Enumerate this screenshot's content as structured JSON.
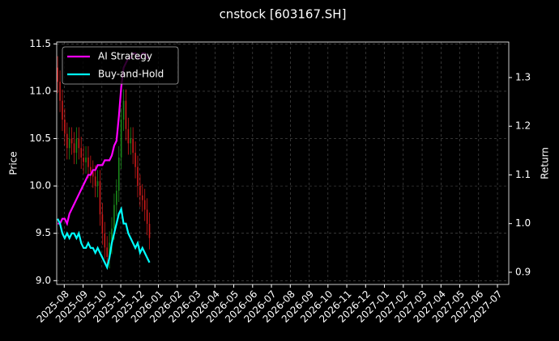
{
  "chart_data": {
    "type": "candlestick",
    "title": "cnstock [603167.SH]",
    "ylabel": "Price",
    "y2label": "Return",
    "x": [
      -0.35,
      -0.225,
      -0.1,
      0.025,
      0.15,
      0.275,
      0.4,
      0.525,
      0.65,
      0.775,
      0.9,
      1.025,
      1.15,
      1.275,
      1.4,
      1.525,
      1.65,
      1.775,
      1.9,
      2.025,
      2.15,
      2.275,
      2.4,
      2.525,
      2.65,
      2.775,
      2.9,
      3.025,
      3.15,
      3.275,
      3.4,
      3.525,
      3.65,
      3.775,
      3.9,
      4.025,
      4.15,
      4.275,
      4.4,
      4.525
    ],
    "open": [
      11.25,
      11.1,
      10.9,
      10.7,
      10.55,
      10.4,
      10.5,
      10.45,
      10.35,
      10.5,
      10.4,
      10.3,
      10.25,
      10.3,
      10.2,
      10.15,
      10.1,
      10.0,
      10.05,
      9.7,
      9.5,
      9.35,
      9.25,
      9.4,
      9.55,
      9.8,
      9.95,
      10.3,
      10.7,
      10.9,
      10.6,
      10.45,
      10.5,
      10.35,
      10.2,
      10.0,
      9.9,
      9.85,
      9.75,
      9.6
    ],
    "high": [
      11.37,
      11.22,
      11.02,
      10.82,
      10.67,
      10.62,
      10.62,
      10.57,
      10.62,
      10.62,
      10.52,
      10.42,
      10.42,
      10.42,
      10.32,
      10.27,
      10.22,
      10.17,
      10.17,
      9.82,
      9.62,
      9.47,
      9.52,
      9.67,
      9.92,
      10.07,
      10.42,
      10.82,
      11.02,
      11.02,
      10.72,
      10.62,
      10.62,
      10.47,
      10.32,
      10.12,
      10.02,
      9.97,
      9.87,
      9.72
    ],
    "low": [
      10.98,
      10.78,
      10.58,
      10.43,
      10.28,
      10.28,
      10.33,
      10.23,
      10.23,
      10.28,
      10.18,
      10.13,
      10.13,
      10.08,
      10.03,
      9.98,
      9.88,
      9.88,
      9.58,
      9.38,
      9.23,
      9.13,
      9.13,
      9.28,
      9.43,
      9.68,
      9.83,
      10.18,
      10.58,
      10.48,
      10.33,
      10.33,
      10.23,
      10.08,
      9.88,
      9.78,
      9.73,
      9.63,
      9.48,
      9.33
    ],
    "close": [
      11.1,
      10.9,
      10.7,
      10.55,
      10.4,
      10.5,
      10.45,
      10.35,
      10.5,
      10.4,
      10.3,
      10.25,
      10.3,
      10.2,
      10.15,
      10.1,
      10.0,
      10.05,
      9.7,
      9.5,
      9.35,
      9.25,
      9.4,
      9.55,
      9.8,
      9.95,
      10.3,
      10.7,
      10.9,
      10.6,
      10.45,
      10.5,
      10.35,
      10.2,
      10.0,
      9.9,
      9.85,
      9.75,
      9.6,
      9.45
    ],
    "up_color": "#1a8a1a",
    "down_color": "#cc1a1a",
    "series": [
      {
        "name": "AI Strategy",
        "color": "#ff00ff",
        "axis": "y2",
        "values": [
          1.0,
          1.0,
          1.01,
          1.01,
          1.0,
          1.02,
          1.03,
          1.04,
          1.05,
          1.06,
          1.07,
          1.08,
          1.09,
          1.1,
          1.1,
          1.11,
          1.11,
          1.12,
          1.12,
          1.12,
          1.13,
          1.13,
          1.13,
          1.14,
          1.16,
          1.17,
          1.22,
          1.28,
          1.32,
          1.33,
          1.34,
          1.34,
          1.35,
          1.35,
          1.34,
          1.34,
          1.35,
          1.35,
          1.34,
          1.34
        ]
      },
      {
        "name": "Buy-and-Hold",
        "color": "#00ffff",
        "axis": "y2",
        "values": [
          1.01,
          1.0,
          0.98,
          0.97,
          0.98,
          0.97,
          0.98,
          0.98,
          0.97,
          0.98,
          0.96,
          0.95,
          0.95,
          0.96,
          0.95,
          0.95,
          0.94,
          0.95,
          0.94,
          0.93,
          0.92,
          0.91,
          0.93,
          0.96,
          0.98,
          1.0,
          1.02,
          1.03,
          1.0,
          1.0,
          0.98,
          0.97,
          0.96,
          0.95,
          0.96,
          0.94,
          0.95,
          0.94,
          0.93,
          0.92
        ]
      }
    ],
    "xlim": [
      -0.4,
      23.6
    ],
    "xticks": [
      {
        "value": 0,
        "label": "2025-08"
      },
      {
        "value": 1,
        "label": "2025-09"
      },
      {
        "value": 2,
        "label": "2025-10"
      },
      {
        "value": 3,
        "label": "2025-11"
      },
      {
        "value": 4,
        "label": "2025-12"
      },
      {
        "value": 5,
        "label": "2026-01"
      },
      {
        "value": 6,
        "label": "2026-02"
      },
      {
        "value": 7,
        "label": "2026-03"
      },
      {
        "value": 8,
        "label": "2026-04"
      },
      {
        "value": 9,
        "label": "2026-05"
      },
      {
        "value": 10,
        "label": "2026-06"
      },
      {
        "value": 11,
        "label": "2026-07"
      },
      {
        "value": 12,
        "label": "2026-08"
      },
      {
        "value": 13,
        "label": "2026-09"
      },
      {
        "value": 14,
        "label": "2026-10"
      },
      {
        "value": 15,
        "label": "2026-11"
      },
      {
        "value": 16,
        "label": "2026-12"
      },
      {
        "value": 17,
        "label": "2027-01"
      },
      {
        "value": 18,
        "label": "2027-02"
      },
      {
        "value": 19,
        "label": "2027-03"
      },
      {
        "value": 20,
        "label": "2027-04"
      },
      {
        "value": 21,
        "label": "2027-05"
      },
      {
        "value": 22,
        "label": "2027-06"
      },
      {
        "value": 23,
        "label": "2027-07"
      }
    ],
    "ylim": [
      8.96,
      11.52
    ],
    "yticks": [
      {
        "value": 9,
        "label": "9.0"
      },
      9.5,
      {
        "value": 10,
        "label": "10.0"
      },
      10.5,
      {
        "value": 11,
        "label": "11.0"
      },
      11.5
    ],
    "y2lim": [
      0.875,
      1.373
    ],
    "y2ticks": [
      0.9,
      {
        "value": 1,
        "label": "1.0"
      },
      1.1,
      1.2,
      1.3
    ],
    "grid": true,
    "legend": "upper left"
  }
}
